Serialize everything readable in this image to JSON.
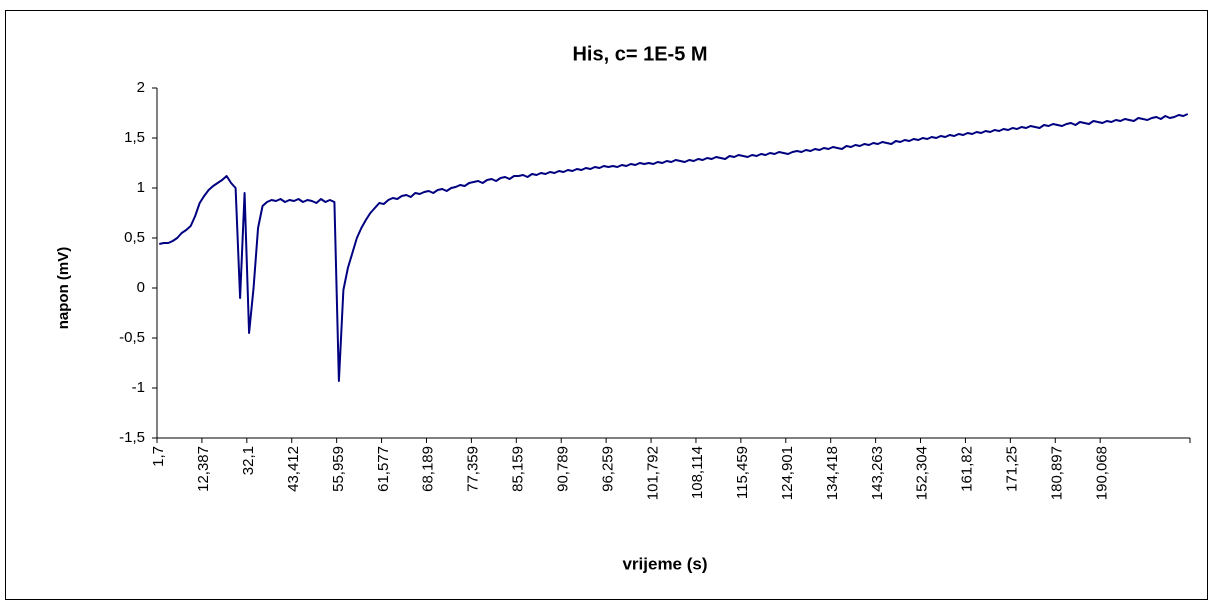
{
  "chart_data": {
    "type": "line",
    "title": "His, c= 1E-5 M",
    "x_label": "vrijeme (s)",
    "y_label": "napon (mV)",
    "categories": [
      "1,7",
      null,
      null,
      null,
      null,
      null,
      null,
      null,
      null,
      null,
      "12,387",
      null,
      null,
      null,
      null,
      null,
      null,
      null,
      null,
      null,
      "32,1",
      null,
      null,
      null,
      null,
      null,
      null,
      null,
      null,
      null,
      "43,412",
      null,
      null,
      null,
      null,
      null,
      null,
      null,
      null,
      null,
      "55,959",
      null,
      null,
      null,
      null,
      null,
      null,
      null,
      null,
      null,
      "61,577",
      null,
      null,
      null,
      null,
      null,
      null,
      null,
      null,
      null,
      "68,189",
      null,
      null,
      null,
      null,
      null,
      null,
      null,
      null,
      null,
      "77,359",
      null,
      null,
      null,
      null,
      null,
      null,
      null,
      null,
      null,
      "85,159",
      null,
      null,
      null,
      null,
      null,
      null,
      null,
      null,
      null,
      "90,789",
      null,
      null,
      null,
      null,
      null,
      null,
      null,
      null,
      null,
      "96,259",
      null,
      null,
      null,
      null,
      null,
      null,
      null,
      null,
      null,
      "101,792",
      null,
      null,
      null,
      null,
      null,
      null,
      null,
      null,
      null,
      "108,114",
      null,
      null,
      null,
      null,
      null,
      null,
      null,
      null,
      null,
      "115,459",
      null,
      null,
      null,
      null,
      null,
      null,
      null,
      null,
      null,
      "124,901",
      null,
      null,
      null,
      null,
      null,
      null,
      null,
      null,
      null,
      "134,418",
      null,
      null,
      null,
      null,
      null,
      null,
      null,
      null,
      null,
      "143,263",
      null,
      null,
      null,
      null,
      null,
      null,
      null,
      null,
      null,
      "152,304",
      null,
      null,
      null,
      null,
      null,
      null,
      null,
      null,
      null,
      "161,82",
      null,
      null,
      null,
      null,
      null,
      null,
      null,
      null,
      null,
      "171,25",
      null,
      null,
      null,
      null,
      null,
      null,
      null,
      null,
      null,
      "180,897",
      null,
      null,
      null,
      null,
      null,
      null,
      null,
      null,
      null,
      "190,068",
      null,
      null,
      null,
      null,
      null,
      null,
      null,
      null,
      null,
      null,
      null,
      null,
      null,
      null,
      null,
      null,
      null,
      null,
      null
    ],
    "series": [
      {
        "color": "#000080",
        "values": [
          0.44,
          0.45,
          0.45,
          0.47,
          0.5,
          0.55,
          0.58,
          0.62,
          0.72,
          0.85,
          0.92,
          0.98,
          1.02,
          1.05,
          1.08,
          1.12,
          1.05,
          1.0,
          -0.1,
          0.95,
          -0.45,
          0.0,
          0.6,
          0.82,
          0.86,
          0.88,
          0.87,
          0.89,
          0.86,
          0.88,
          0.87,
          0.89,
          0.86,
          0.88,
          0.87,
          0.85,
          0.89,
          0.86,
          0.88,
          0.86,
          -0.93,
          -0.02,
          0.2,
          0.35,
          0.5,
          0.6,
          0.68,
          0.75,
          0.8,
          0.85,
          0.84,
          0.88,
          0.9,
          0.89,
          0.92,
          0.93,
          0.91,
          0.95,
          0.94,
          0.96,
          0.97,
          0.95,
          0.98,
          0.99,
          0.97,
          1.0,
          1.01,
          1.03,
          1.02,
          1.05,
          1.06,
          1.07,
          1.05,
          1.08,
          1.09,
          1.07,
          1.1,
          1.11,
          1.09,
          1.12,
          1.12,
          1.13,
          1.11,
          1.14,
          1.13,
          1.15,
          1.14,
          1.16,
          1.15,
          1.17,
          1.16,
          1.18,
          1.17,
          1.19,
          1.18,
          1.2,
          1.19,
          1.21,
          1.2,
          1.22,
          1.21,
          1.22,
          1.21,
          1.23,
          1.22,
          1.24,
          1.23,
          1.25,
          1.24,
          1.25,
          1.24,
          1.26,
          1.25,
          1.27,
          1.26,
          1.28,
          1.27,
          1.26,
          1.28,
          1.27,
          1.29,
          1.28,
          1.3,
          1.29,
          1.31,
          1.3,
          1.29,
          1.32,
          1.31,
          1.33,
          1.32,
          1.31,
          1.33,
          1.32,
          1.34,
          1.33,
          1.35,
          1.34,
          1.36,
          1.35,
          1.34,
          1.36,
          1.37,
          1.36,
          1.38,
          1.37,
          1.39,
          1.38,
          1.4,
          1.39,
          1.41,
          1.4,
          1.39,
          1.42,
          1.41,
          1.43,
          1.42,
          1.44,
          1.43,
          1.45,
          1.44,
          1.46,
          1.45,
          1.44,
          1.47,
          1.46,
          1.48,
          1.47,
          1.49,
          1.48,
          1.5,
          1.49,
          1.51,
          1.5,
          1.52,
          1.51,
          1.53,
          1.52,
          1.54,
          1.53,
          1.55,
          1.54,
          1.56,
          1.55,
          1.57,
          1.56,
          1.58,
          1.57,
          1.59,
          1.58,
          1.6,
          1.59,
          1.61,
          1.6,
          1.62,
          1.61,
          1.6,
          1.63,
          1.62,
          1.64,
          1.63,
          1.62,
          1.64,
          1.65,
          1.63,
          1.66,
          1.65,
          1.64,
          1.67,
          1.66,
          1.65,
          1.67,
          1.66,
          1.68,
          1.67,
          1.69,
          1.68,
          1.67,
          1.7,
          1.69,
          1.68,
          1.7,
          1.71,
          1.69,
          1.72,
          1.7,
          1.71,
          1.73,
          1.72,
          1.74
        ]
      }
    ],
    "ylim": [
      -1.5,
      2
    ],
    "yticks": [
      {
        "value": -1.5,
        "label": "-1,5"
      },
      -1,
      {
        "value": -0.5,
        "label": "-0,5"
      },
      0,
      {
        "value": 0.5,
        "label": "0,5"
      },
      1,
      {
        "value": 1.5,
        "label": "1,5"
      },
      2
    ]
  }
}
